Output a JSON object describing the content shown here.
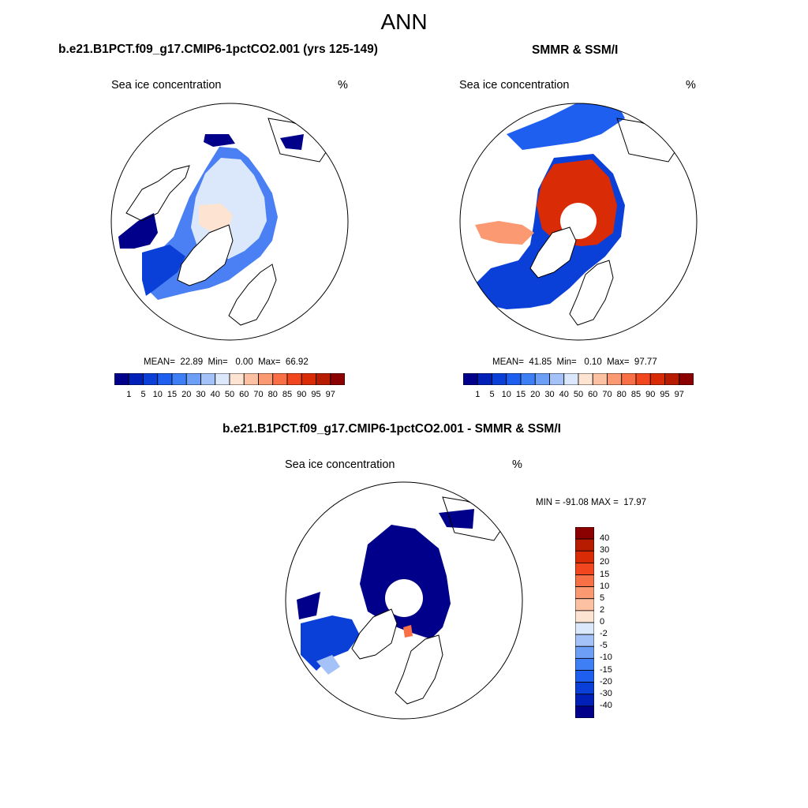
{
  "figure": {
    "title": "ANN"
  },
  "panels": [
    {
      "title": "b.e21.B1PCT.f09_g17.CMIP6-1pctCO2.001 (yrs 125-149)",
      "variable": "Sea ice concentration",
      "units": "%",
      "stats": "MEAN=  22.89  Min=   0.00  Max=  66.92",
      "mean": 22.89,
      "min": 0.0,
      "max": 66.92
    },
    {
      "title": "SMMR & SSM/I",
      "variable": "Sea ice concentration",
      "units": "%",
      "stats": "MEAN=  41.85  Min=   0.10  Max=  97.77",
      "mean": 41.85,
      "min": 0.1,
      "max": 97.77
    },
    {
      "title": "b.e21.B1PCT.f09_g17.CMIP6-1pctCO2.001 - SMMR & SSM/I",
      "variable": "Sea ice concentration",
      "units": "%",
      "stats": "MIN = -91.08 MAX =  17.97",
      "min": -91.08,
      "max": 17.97
    }
  ],
  "colorbar_abs": {
    "labels": [
      "1",
      "5",
      "10",
      "15",
      "20",
      "30",
      "40",
      "50",
      "60",
      "70",
      "80",
      "85",
      "90",
      "95",
      "97"
    ],
    "colors": [
      "#00008b",
      "#0020b8",
      "#0a3fd8",
      "#1f5ff0",
      "#3f7ff5",
      "#6e9ff6",
      "#a4c2f7",
      "#dbe8fb",
      "#fde3d2",
      "#fcc1a2",
      "#fb9a72",
      "#f97046",
      "#f2461f",
      "#d92c06",
      "#b81c00",
      "#8b0000"
    ]
  },
  "colorbar_diff": {
    "labels": [
      "40",
      "30",
      "20",
      "15",
      "10",
      "5",
      "2",
      "0",
      "-2",
      "-5",
      "-10",
      "-15",
      "-20",
      "-30",
      "-40"
    ],
    "colors": [
      "#8b0000",
      "#b81c00",
      "#d92c06",
      "#f2461f",
      "#f97046",
      "#fb9a72",
      "#fcc1a2",
      "#fde3d2",
      "#dbe8fb",
      "#a4c2f7",
      "#6e9ff6",
      "#3f7ff5",
      "#1f5ff0",
      "#0a3fd8",
      "#0020b8",
      "#00008b"
    ]
  }
}
